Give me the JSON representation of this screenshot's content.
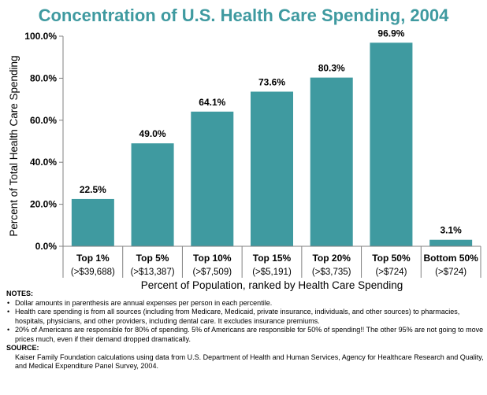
{
  "title": "Concentration of U.S. Health Care Spending, 2004",
  "chart_data": {
    "type": "bar",
    "categories": [
      "Top 1%",
      "Top 5%",
      "Top 10%",
      "Top 15%",
      "Top 20%",
      "Top 50%",
      "Bottom 50%"
    ],
    "subcategories": [
      "(>$39,688)",
      "(>$13,387)",
      "(>$7,509)",
      "(>$5,191)",
      "(>$3,735)",
      "(>$724)",
      "(>$724)"
    ],
    "values": [
      22.5,
      49.0,
      64.1,
      73.6,
      80.3,
      96.9,
      3.1
    ],
    "value_labels": [
      "22.5%",
      "49.0%",
      "64.1%",
      "73.6%",
      "80.3%",
      "96.9%",
      "3.1%"
    ],
    "title": "Concentration of U.S. Health Care Spending, 2004",
    "xlabel": "Percent of Population,  ranked by Health Care Spending",
    "ylabel": "Percent of Total Health Care Spending",
    "ylim": [
      0,
      100
    ],
    "yticks": [
      0,
      20,
      40,
      60,
      80,
      100
    ],
    "ytick_labels": [
      "0.0%",
      "20.0%",
      "40.0%",
      "60.0%",
      "80.0%",
      "100.0%"
    ],
    "grid": false,
    "bar_color": "#3f9aa0"
  },
  "notes": {
    "header": "NOTES:",
    "items": [
      "Dollar amounts in parenthesis are annual expenses per person in each percentile.",
      "Health care spending is from all sources (including from Medicare, Medicaid, private insurance, individuals, and other sources) to pharmacies, hospitals, physicians, and other providers, including dental care. It excludes insurance premiums.",
      "20% of Americans are responsible for 80% of spending. 5% of Americans are responsible for 50% of spending!! The other 95% are not going to move prices much, even if their demand dropped dramatically."
    ]
  },
  "source": {
    "header": "SOURCE:",
    "text": "Kaiser Family Foundation calculations using data from U.S. Department of Health and Human Services, Agency for Healthcare Research and Quality, and Medical Expenditure Panel Survey, 2004."
  }
}
